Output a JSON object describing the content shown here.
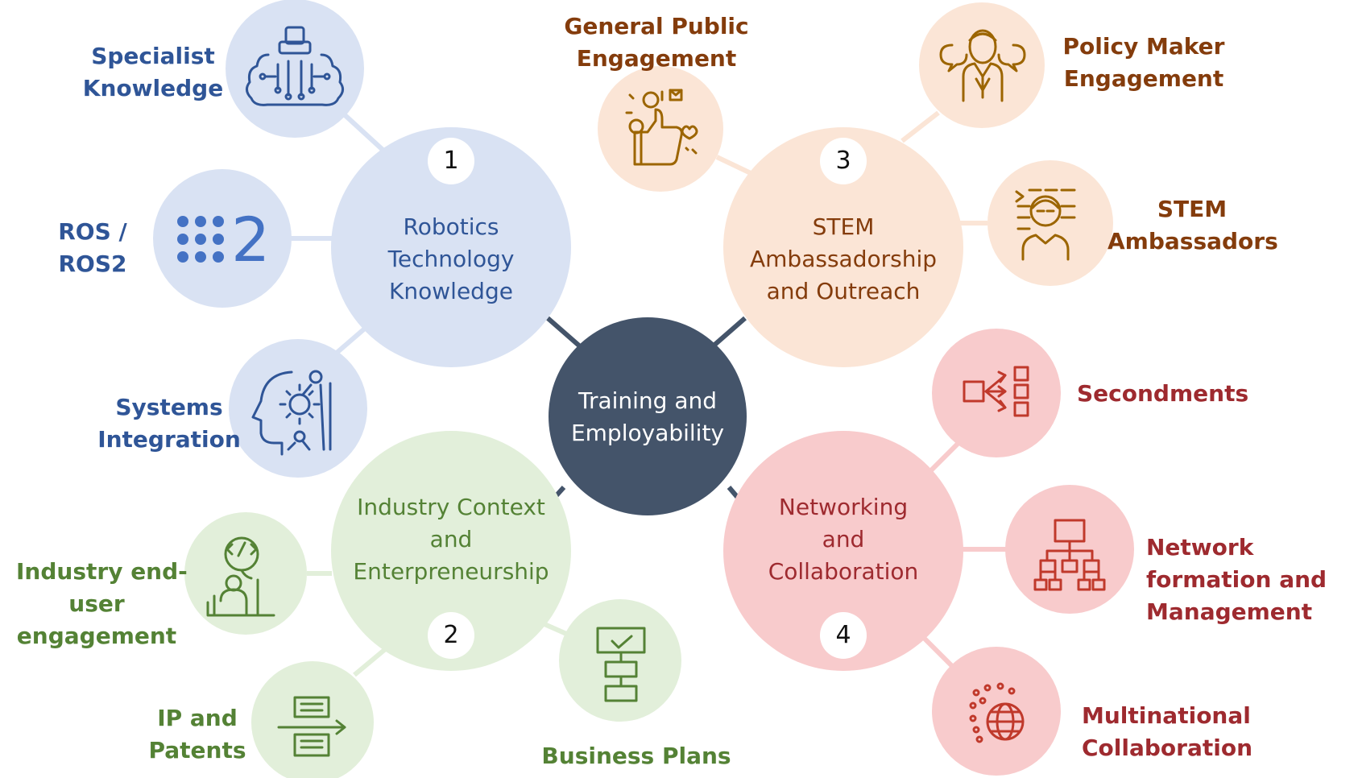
{
  "colors": {
    "center_fill": "#44546a",
    "blue_fill": "#d9e2f3",
    "blue_text": "#2f5597",
    "green_fill": "#e2efda",
    "green_text": "#548235",
    "orange_fill": "#fbe5d6",
    "orange_text": "#843c0c",
    "red_fill": "#f8cbcc",
    "red_text": "#9e2a2f"
  },
  "center": {
    "lines": [
      "Training and",
      "Employability"
    ]
  },
  "hubs": {
    "robotics": {
      "number": "1",
      "lines": [
        "Robotics",
        "Technology",
        "Knowledge"
      ]
    },
    "industry": {
      "number": "2",
      "lines": [
        "Industry Context",
        "and",
        "Enterpreneurship"
      ]
    },
    "stem": {
      "number": "3",
      "lines": [
        "STEM",
        "Ambassadorship",
        "and Outreach"
      ]
    },
    "network": {
      "number": "4",
      "lines": [
        "Networking",
        "and",
        "Collaboration"
      ]
    }
  },
  "leaves": {
    "specialist": {
      "lines": [
        "Specialist",
        "Knowledge"
      ],
      "icon": "brain-circuit-icon"
    },
    "ros": {
      "lines": [
        "ROS /",
        "ROS2"
      ],
      "icon": "ros2-logo-icon"
    },
    "systems": {
      "lines": [
        "Systems",
        "Integration"
      ],
      "icon": "head-gear-icon"
    },
    "industry_user": {
      "lines": [
        "Industry end-",
        "user",
        "engagement"
      ],
      "icon": "developer-code-icon"
    },
    "ip": {
      "lines": [
        "IP and",
        "Patents"
      ],
      "icon": "document-arrow-icon"
    },
    "business": {
      "lines": [
        "Business Plans"
      ],
      "icon": "flowchart-checkbox-icon"
    },
    "general": {
      "lines": [
        "General Public",
        "Engagement"
      ],
      "icon": "thumbs-up-emoji-icon"
    },
    "policy": {
      "lines": [
        "Policy Maker",
        "Engagement"
      ],
      "icon": "speaker-speech-icon"
    },
    "stem_amb": {
      "lines": [
        "STEM",
        "Ambassadors"
      ],
      "icon": "person-code-lines-icon"
    },
    "secondments": {
      "lines": [
        "Secondments"
      ],
      "icon": "box-arrows-icon"
    },
    "network_form": {
      "lines": [
        "Network",
        "formation and",
        "Management"
      ],
      "icon": "org-chart-icon"
    },
    "multinational": {
      "lines": [
        "Multinational",
        "Collaboration"
      ],
      "icon": "globe-dots-icon"
    }
  }
}
